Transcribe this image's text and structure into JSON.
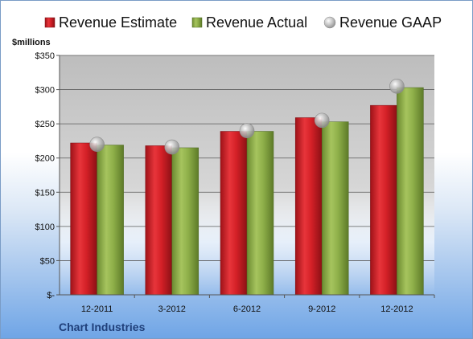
{
  "chart_data": {
    "type": "bar",
    "title": "",
    "ylabel": "$millions",
    "xlabel": "",
    "categories": [
      "12-2011",
      "3-2012",
      "6-2012",
      "9-2012",
      "12-2012"
    ],
    "series": [
      {
        "name": "Revenue Estimate",
        "kind": "bar",
        "color": "#d42027",
        "values": [
          222,
          218,
          239,
          259,
          277
        ]
      },
      {
        "name": "Revenue Actual",
        "kind": "bar",
        "color": "#8fb04a",
        "values": [
          219,
          215,
          239,
          253,
          303
        ]
      },
      {
        "name": "Revenue GAAP",
        "kind": "marker",
        "color": "#b8b8b8",
        "values": [
          220,
          216,
          240,
          255,
          305
        ]
      }
    ],
    "ylim": [
      0,
      350
    ],
    "yticks": [
      0,
      50,
      100,
      150,
      200,
      250,
      300,
      350
    ],
    "ytick_labels": [
      "$-",
      "$50",
      "$100",
      "$150",
      "$200",
      "$250",
      "$300",
      "$350"
    ],
    "grid": true,
    "legend_position": "top",
    "footer": "Chart Industries"
  }
}
